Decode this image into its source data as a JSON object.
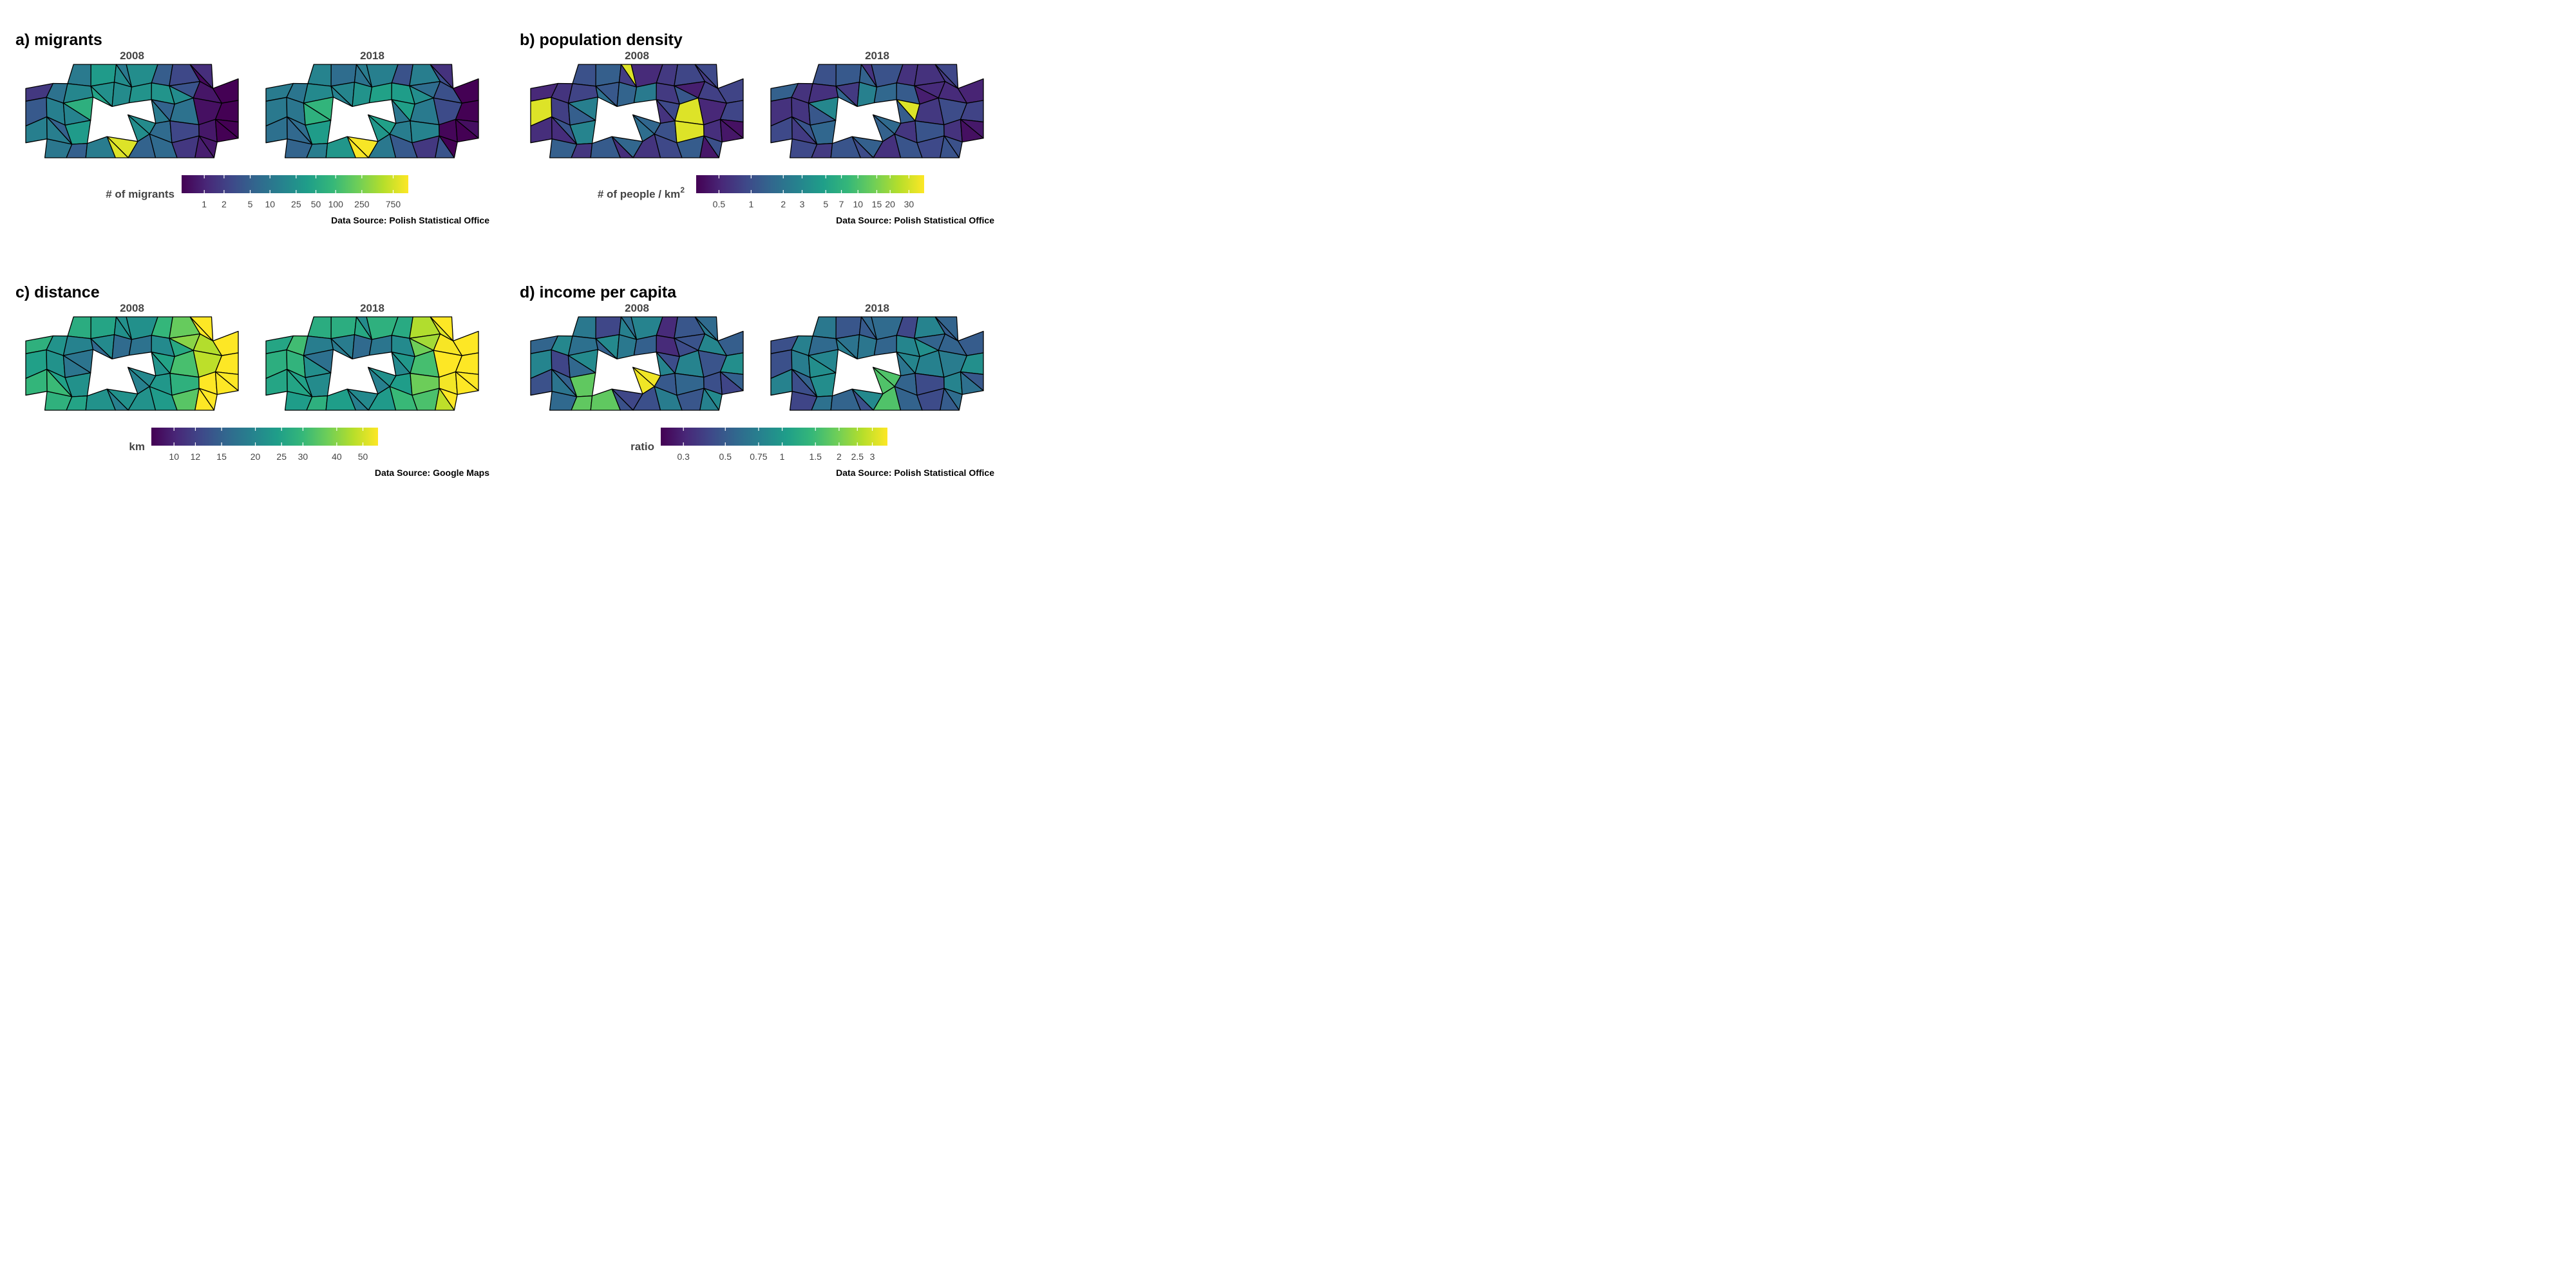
{
  "panels": [
    {
      "title": "a) migrants",
      "years": [
        "2008",
        "2018"
      ],
      "legend_title": "# of migrants",
      "legend_ticks": [
        "1",
        "2",
        "5",
        "10",
        "25",
        "50",
        "100",
        "250",
        "750"
      ],
      "source": "Data Source: Polish Statistical Office",
      "maps": [
        {
          "hot_left": [
            0.55,
            0.82
          ],
          "hot_right": [
            0.58,
            0.8
          ],
          "base": 0.48,
          "spread": 0.32,
          "seed": 11,
          "mid_zone": 0.62,
          "dark_east": 0.12
        },
        {
          "hot_left": [
            0.48,
            0.82
          ],
          "hot_right": [
            0.58,
            0.78
          ],
          "base": 0.5,
          "spread": 0.3,
          "seed": 23,
          "mid_zone": 0.65,
          "dark_east": 0.15
        }
      ],
      "key": "migrants"
    },
    {
      "title": "b) population density",
      "years": [
        "2008",
        "2018"
      ],
      "legend_title": "# of people / km",
      "legend_title_sup": "2",
      "legend_ticks": [
        "0.5",
        "1",
        "2",
        "3",
        "5",
        "7",
        "10",
        "15",
        "20",
        "30"
      ],
      "source": "Data Source: Polish Statistical Office",
      "key": "density"
    },
    {
      "title": "c) distance",
      "years": [
        "2008",
        "2018"
      ],
      "legend_title": "km",
      "legend_ticks": [
        "10",
        "12",
        "15",
        "20",
        "25",
        "30",
        "40",
        "50"
      ],
      "source": "Data Source: Google Maps",
      "key": "distance"
    },
    {
      "title": "d) income per capita",
      "years": [
        "2008",
        "2018"
      ],
      "legend_title": "ratio",
      "legend_ticks": [
        "0.3",
        "0.5",
        "0.75",
        "1",
        "1.5",
        "2",
        "2.5",
        "3"
      ],
      "source": "Data Source: Polish Statistical Office",
      "key": "income"
    }
  ],
  "colors": {
    "viridis": [
      "#440154",
      "#482878",
      "#3e4989",
      "#31688e",
      "#26828e",
      "#1f9e89",
      "#35b779",
      "#6ece58",
      "#b5de2b",
      "#fde725"
    ],
    "border": "#000000",
    "hole": "#ffffff"
  }
}
